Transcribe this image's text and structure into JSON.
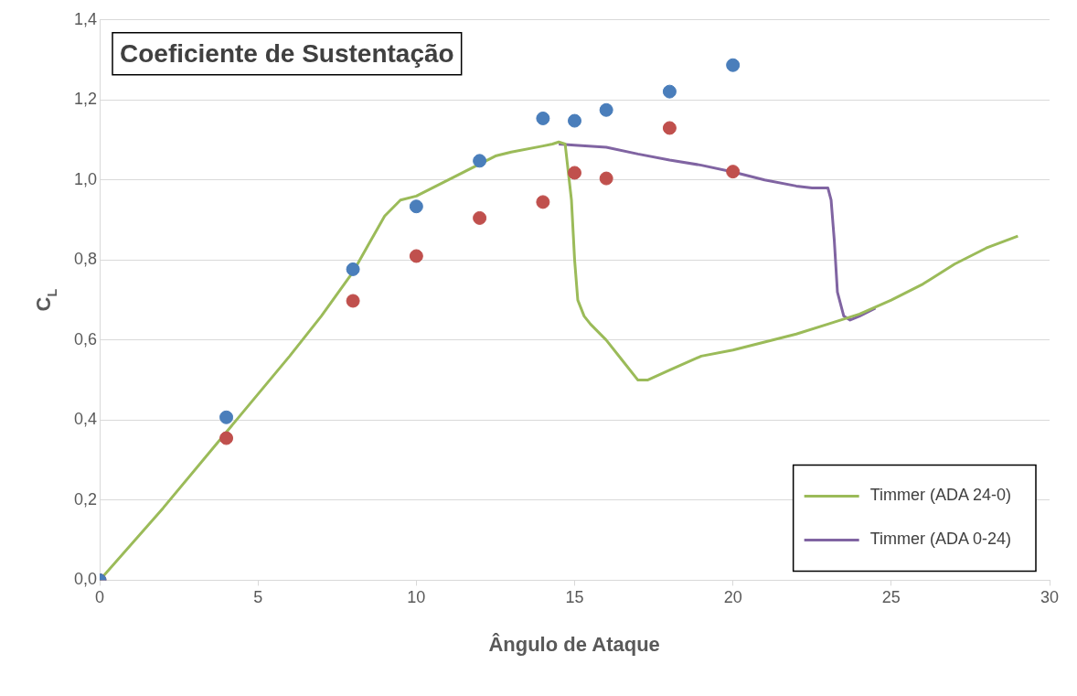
{
  "chart_data": {
    "type": "scatter",
    "title": "Coeficiente de Sustentação",
    "xlabel": "Ângulo de Ataque",
    "ylabel": "C$_{L}$",
    "xlim": [
      0,
      30
    ],
    "xticks": [
      0,
      5,
      10,
      15,
      20,
      25,
      30
    ],
    "ylim": [
      0,
      1.4
    ],
    "yticks": [
      {
        "value": 0,
        "label": "0,0"
      },
      {
        "value": 0.2,
        "label": "0,2"
      },
      {
        "value": 0.4,
        "label": "0,4"
      },
      {
        "value": 0.6,
        "label": "0,6"
      },
      {
        "value": 0.8,
        "label": "0,8"
      },
      {
        "value": 1.0,
        "label": "1,0"
      },
      {
        "value": 1.2,
        "label": "1,2"
      },
      {
        "value": 1.4,
        "label": "1,4"
      }
    ],
    "grid": "y",
    "legend": "bottom right",
    "series": [
      {
        "type": "scatter",
        "marker": "circle",
        "color": "#4a7ebb",
        "x": [
          0,
          4,
          8,
          10,
          12,
          14,
          15,
          16,
          18,
          20
        ],
        "values": [
          0,
          0.407,
          0.777,
          0.934,
          1.048,
          1.154,
          1.148,
          1.175,
          1.221,
          1.287
        ]
      },
      {
        "type": "scatter",
        "marker": "circle",
        "color": "#c0504d",
        "x": [
          0,
          4,
          8,
          10,
          12,
          14,
          15,
          16,
          18,
          20
        ],
        "values": [
          0,
          0.355,
          0.698,
          0.81,
          0.905,
          0.945,
          1.018,
          1.004,
          1.13,
          1.021
        ]
      },
      {
        "type": "line",
        "marker": "none",
        "name": "Timmer (ADA 24-0)",
        "color": "#9bbb59",
        "x": [
          0,
          2,
          4,
          6,
          7,
          8,
          8.5,
          9,
          9.5,
          10,
          10.5,
          11,
          12,
          12.5,
          13,
          14,
          14.3,
          14.5,
          14.7,
          14.9,
          15.0,
          15.1,
          15.3,
          15.5,
          16,
          16.5,
          17,
          17.3,
          18,
          19,
          20,
          21,
          22,
          23,
          24,
          25,
          26,
          27,
          28,
          29
        ],
        "values": [
          0,
          0.18,
          0.37,
          0.56,
          0.66,
          0.77,
          0.84,
          0.91,
          0.95,
          0.96,
          0.98,
          1.0,
          1.04,
          1.06,
          1.07,
          1.085,
          1.09,
          1.095,
          1.09,
          0.95,
          0.8,
          0.7,
          0.66,
          0.64,
          0.6,
          0.55,
          0.5,
          0.5,
          0.525,
          0.56,
          0.575,
          0.595,
          0.615,
          0.64,
          0.665,
          0.7,
          0.74,
          0.79,
          0.83,
          0.86
        ]
      },
      {
        "type": "line",
        "marker": "none",
        "name": "Timmer (ADA 0-24)",
        "color": "#8064a2",
        "x": [
          14.5,
          15,
          16,
          17,
          18,
          19,
          20,
          21,
          22,
          22.5,
          23,
          23.1,
          23.2,
          23.3,
          23.5,
          23.7,
          24,
          24.5
        ],
        "values": [
          1.09,
          1.087,
          1.082,
          1.065,
          1.05,
          1.037,
          1.02,
          1.0,
          0.985,
          0.98,
          0.98,
          0.95,
          0.85,
          0.72,
          0.66,
          0.65,
          0.66,
          0.68
        ]
      }
    ]
  }
}
